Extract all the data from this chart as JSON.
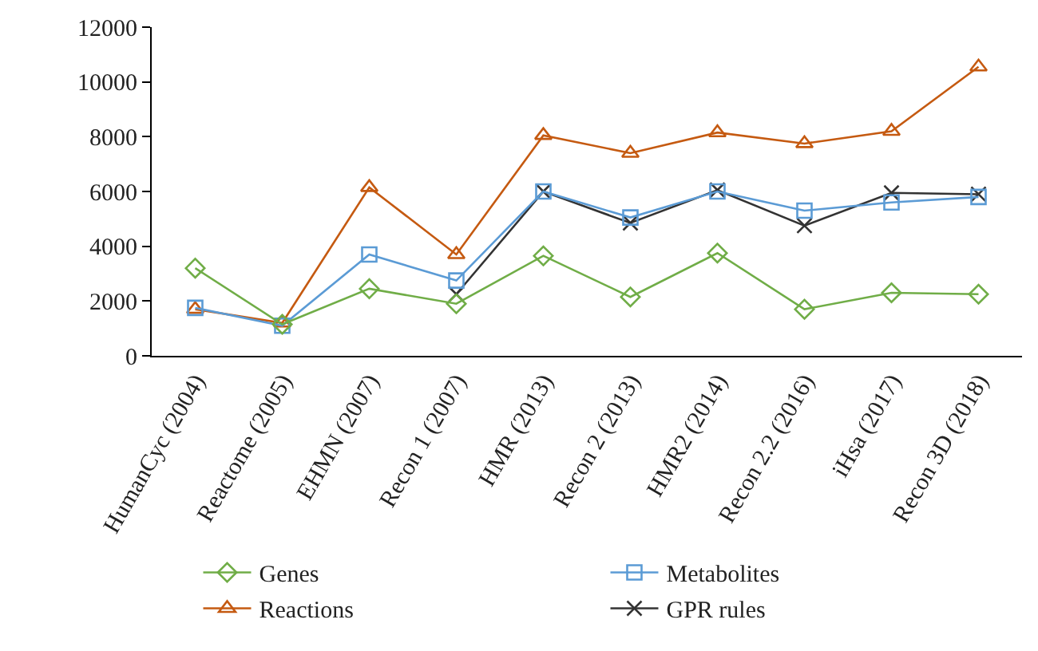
{
  "chart_data": {
    "type": "line",
    "categories": [
      "HumanCyc (2004)",
      "Reactome (2005)",
      "EHMN (2007)",
      "Recon 1 (2007)",
      "HMR (2013)",
      "Recon 2 (2013)",
      "HMR2 (2014)",
      "Recon 2.2 (2016)",
      "iHsa (2017)",
      "Recon 3D (2018)"
    ],
    "series": [
      {
        "name": "Genes",
        "color": "#70ad47",
        "marker": "diamond",
        "values": [
          3200,
          1150,
          2450,
          1900,
          3650,
          2150,
          3750,
          1700,
          2300,
          2250
        ]
      },
      {
        "name": "Metabolites",
        "color": "#5b9bd5",
        "marker": "square",
        "values": [
          1750,
          1100,
          3700,
          2750,
          6000,
          5050,
          6000,
          5300,
          5600,
          5800
        ]
      },
      {
        "name": "Reactions",
        "color": "#c55a11",
        "marker": "triangle",
        "values": [
          1700,
          1200,
          6150,
          3700,
          8050,
          7400,
          8150,
          7750,
          8200,
          10550
        ]
      },
      {
        "name": "GPR rules",
        "color": "#333333",
        "marker": "cross",
        "values": [
          null,
          null,
          null,
          2250,
          6000,
          4850,
          6050,
          4750,
          5950,
          5900
        ]
      }
    ],
    "ylim": [
      0,
      12000
    ],
    "yticks": [
      0,
      2000,
      4000,
      6000,
      8000,
      10000,
      12000
    ],
    "grid": false,
    "legend": "bottom",
    "line_style": "solid"
  }
}
